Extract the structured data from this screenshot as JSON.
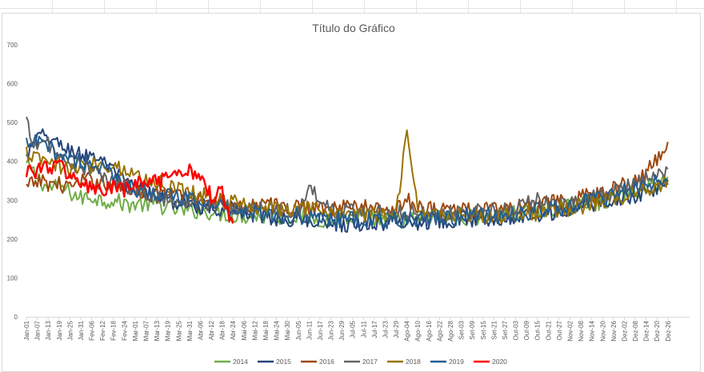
{
  "chart_data": {
    "type": "line",
    "title": "Título do Gráfico",
    "xlabel": "",
    "ylabel": "",
    "ylim": [
      0,
      700
    ],
    "yticks": [
      0,
      100,
      200,
      300,
      400,
      500,
      600,
      700
    ],
    "grid": false,
    "legend_position": "bottom",
    "x_tick_labels": [
      "Jan-01",
      "Jan-07",
      "Jan-13",
      "Jan-19",
      "Jan-25",
      "Jan-31",
      "Fev-06",
      "Fev-12",
      "Fev-18",
      "Fev-24",
      "Mar-01",
      "Mar-07",
      "Mar-13",
      "Mar-19",
      "Mar-25",
      "Mar-31",
      "Abr-06",
      "Abr-12",
      "Abr-18",
      "Abr-24",
      "Mai-06",
      "Mai-12",
      "Mai-18",
      "Mai-24",
      "Mai-30",
      "Jun-05",
      "Jun-11",
      "Jun-17",
      "Jun-23",
      "Jun-29",
      "Jul-05",
      "Jul-11",
      "Jul-17",
      "Jul-23",
      "Jul-29",
      "Ago-04",
      "Ago-10",
      "Ago-16",
      "Ago-22",
      "Ago-28",
      "Set-03",
      "Set-09",
      "Set-15",
      "Set-21",
      "Set-27",
      "Out-03",
      "Out-09",
      "Out-15",
      "Out-21",
      "Out-27",
      "Nov-02",
      "Nov-08",
      "Nov-14",
      "Nov-20",
      "Nov-26",
      "Dez-02",
      "Dez-08",
      "Dez-14",
      "Dez-20",
      "Dez-26"
    ],
    "x_step_days": 6,
    "series": [
      {
        "name": "2014",
        "color": "#70ad47",
        "width": 2,
        "values": [
          390,
          360,
          330,
          340,
          320,
          305,
          310,
          300,
          300,
          290,
          290,
          290,
          290,
          280,
          275,
          270,
          275,
          270,
          265,
          262,
          260,
          258,
          256,
          255,
          258,
          258,
          255,
          252,
          250,
          252,
          255,
          255,
          250,
          245,
          250,
          250,
          250,
          252,
          255,
          255,
          258,
          255,
          260,
          258,
          262,
          265,
          268,
          270,
          275,
          278,
          282,
          288,
          292,
          298,
          305,
          312,
          322,
          332,
          345,
          360
        ]
      },
      {
        "name": "2015",
        "color": "#264478",
        "width": 2,
        "values": [
          410,
          460,
          465,
          440,
          430,
          415,
          420,
          400,
          370,
          350,
          330,
          320,
          315,
          300,
          295,
          290,
          285,
          282,
          280,
          275,
          265,
          262,
          260,
          255,
          250,
          252,
          250,
          248,
          245,
          240,
          238,
          240,
          242,
          240,
          245,
          245,
          245,
          248,
          250,
          252,
          250,
          252,
          255,
          255,
          258,
          260,
          262,
          265,
          268,
          270,
          275,
          282,
          290,
          295,
          302,
          305,
          312,
          320,
          330,
          340
        ]
      },
      {
        "name": "2016",
        "color": "#9e480e",
        "width": 2,
        "values": [
          330,
          350,
          345,
          340,
          335,
          345,
          352,
          345,
          340,
          335,
          328,
          320,
          318,
          315,
          312,
          310,
          305,
          300,
          295,
          292,
          290,
          288,
          286,
          285,
          284,
          282,
          285,
          283,
          282,
          280,
          285,
          282,
          280,
          278,
          280,
          300,
          285,
          280,
          278,
          276,
          278,
          276,
          275,
          276,
          278,
          280,
          282,
          285,
          290,
          295,
          300,
          305,
          315,
          322,
          330,
          340,
          352,
          370,
          400,
          450
        ]
      },
      {
        "name": "2017",
        "color": "#636363",
        "width": 2,
        "values": [
          500,
          430,
          450,
          410,
          395,
          385,
          380,
          360,
          345,
          335,
          325,
          318,
          312,
          305,
          300,
          295,
          292,
          288,
          285,
          282,
          280,
          278,
          276,
          275,
          274,
          272,
          340,
          290,
          278,
          275,
          272,
          272,
          270,
          270,
          270,
          268,
          268,
          268,
          270,
          270,
          268,
          268,
          270,
          272,
          275,
          280,
          290,
          310,
          285,
          285,
          290,
          295,
          305,
          312,
          320,
          330,
          340,
          350,
          365,
          380
        ]
      },
      {
        "name": "2018",
        "color": "#997300",
        "width": 2,
        "values": [
          420,
          405,
          395,
          388,
          375,
          385,
          392,
          395,
          390,
          380,
          365,
          352,
          345,
          340,
          330,
          325,
          315,
          305,
          300,
          292,
          290,
          285,
          282,
          280,
          278,
          276,
          275,
          273,
          270,
          268,
          265,
          262,
          262,
          262,
          265,
          490,
          275,
          268,
          265,
          262,
          262,
          260,
          258,
          258,
          260,
          262,
          265,
          268,
          270,
          275,
          280,
          285,
          292,
          298,
          305,
          312,
          322,
          330,
          340,
          352
        ]
      },
      {
        "name": "2019",
        "color": "#255e91",
        "width": 2,
        "values": [
          440,
          450,
          435,
          420,
          410,
          400,
          395,
          380,
          360,
          345,
          330,
          322,
          318,
          312,
          305,
          300,
          295,
          290,
          285,
          280,
          272,
          268,
          265,
          262,
          260,
          258,
          256,
          255,
          252,
          250,
          250,
          250,
          248,
          248,
          250,
          250,
          252,
          252,
          255,
          255,
          258,
          258,
          260,
          260,
          262,
          265,
          268,
          272,
          276,
          280,
          285,
          292,
          300,
          308,
          315,
          322,
          330,
          338,
          345,
          352
        ]
      },
      {
        "name": "2020",
        "color": "#ff0000",
        "width": 2.5,
        "values": [
          380,
          375,
          390,
          385,
          370,
          340,
          330,
          325,
          330,
          325,
          340,
          350,
          345,
          350,
          360,
          380,
          365,
          310,
          320,
          240
        ]
      }
    ]
  }
}
